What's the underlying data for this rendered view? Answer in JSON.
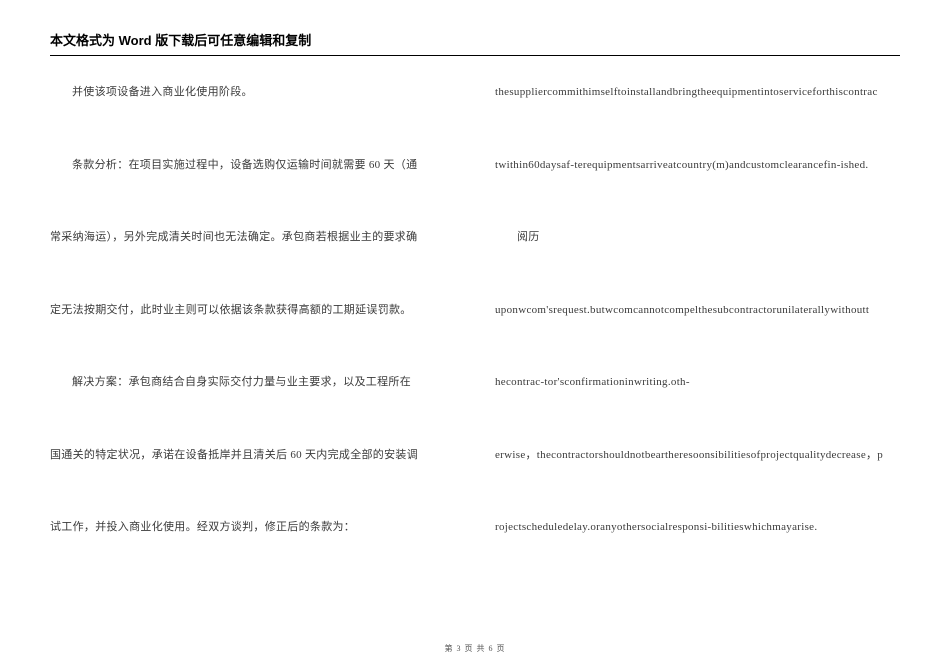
{
  "header": {
    "title": "本文格式为 Word 版下载后可任意编辑和复制"
  },
  "left_column": {
    "lines": [
      "并使该项设备进入商业化使用阶段。",
      "条款分析：在项目实施过程中，设备选购仅运输时间就需要 60 天（通",
      "常采纳海运），另外完成清关时间也无法确定。承包商若根据业主的要求确",
      "定无法按期交付，此时业主则可以依据该条款获得高额的工期延误罚款。",
      "解决方案：承包商结合自身实际交付力量与业主要求，以及工程所在",
      "国通关的特定状况，承诺在设备抵岸并且清关后 60 天内完成全部的安装调",
      "试工作，并投入商业化使用。经双方谈判，修正后的条款为："
    ]
  },
  "right_column": {
    "lines": [
      {
        "text": "thesuppliercommithimselftoinstallandbringtheequipmentintoserviceforthiscontrac",
        "indent": false
      },
      {
        "text": "twithin60daysaf-terequipmentsarriveatcountry(m)andcustomclearancefin-ished.",
        "indent": false
      },
      {
        "text": "阅历",
        "indent": true
      },
      {
        "text": "uponwcom'srequest.butwcomcannotcompelthesubcontractorunilaterallywithoutt",
        "indent": false
      },
      {
        "text": "hecontrac-tor'sconfirmationinwriting.oth-",
        "indent": false
      },
      {
        "text": "erwise，thecontractorshouldnotbeartheresoonsibilitiesofprojectqualitydecrease，p",
        "indent": false
      },
      {
        "text": "rojectscheduledelay.oranyothersocialresponsi-bilitieswhichmayarise.",
        "indent": false
      }
    ]
  },
  "footer": {
    "page_info": "第 3 页 共 6 页"
  }
}
